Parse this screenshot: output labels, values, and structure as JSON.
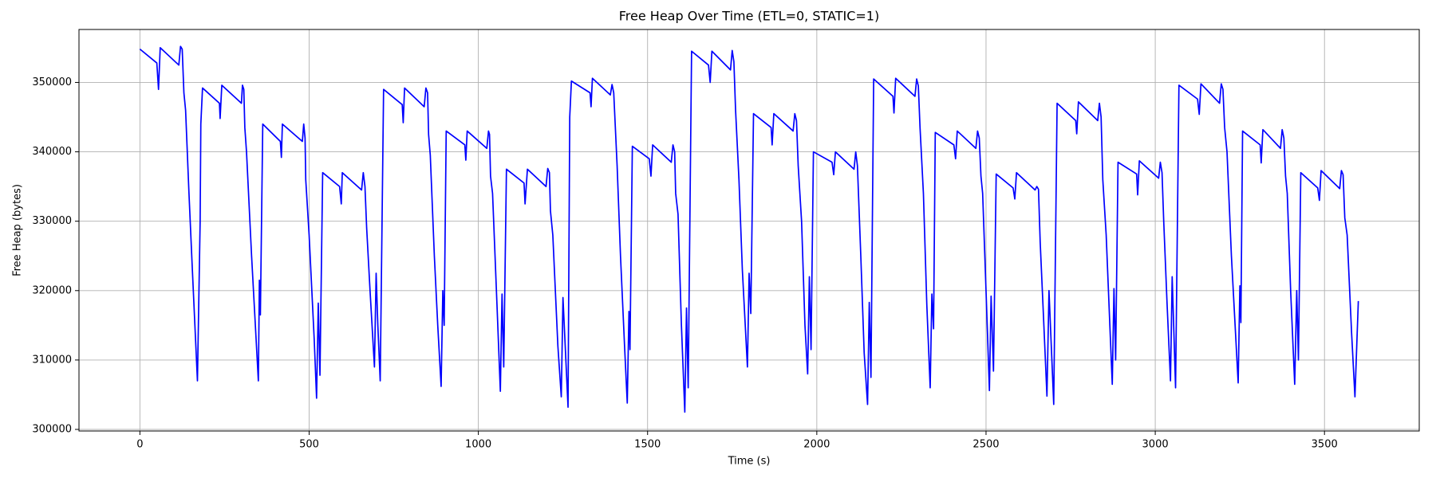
{
  "chart_data": {
    "type": "line",
    "title": "Free Heap Over Time (ETL=0, STATIC=1)",
    "x_label": "Time (s)",
    "y_label": "Free Heap (bytes)",
    "color": "#0000ff",
    "grid": true,
    "xlim": [
      -180,
      3780
    ],
    "ylim": [
      299770,
      357630
    ],
    "xticks": [
      0,
      500,
      1000,
      1500,
      2000,
      2500,
      3000,
      3500
    ],
    "yticks": [
      300000,
      310000,
      320000,
      330000,
      340000,
      350000
    ],
    "x": [
      0,
      50,
      55,
      60,
      115,
      120,
      125,
      130,
      135,
      145,
      155,
      170,
      178,
      180,
      185,
      235,
      237,
      242,
      300,
      303,
      307,
      310,
      315,
      330,
      340,
      350,
      353,
      356,
      363,
      415,
      418,
      421,
      480,
      484,
      488,
      490,
      500,
      515,
      522,
      527,
      532,
      540,
      590,
      595,
      598,
      655,
      660,
      665,
      670,
      680,
      693,
      698,
      703,
      710,
      720,
      775,
      778,
      782,
      840,
      845,
      850,
      853,
      858,
      870,
      880,
      890,
      895,
      899,
      905,
      960,
      963,
      967,
      1025,
      1030,
      1033,
      1036,
      1042,
      1055,
      1065,
      1070,
      1075,
      1083,
      1135,
      1138,
      1145,
      1200,
      1205,
      1210,
      1213,
      1220,
      1235,
      1245,
      1250,
      1265,
      1270,
      1275,
      1330,
      1333,
      1337,
      1390,
      1395,
      1400,
      1410,
      1420,
      1432,
      1440,
      1445,
      1448,
      1455,
      1505,
      1510,
      1515,
      1570,
      1575,
      1580,
      1583,
      1590,
      1600,
      1610,
      1615,
      1620,
      1630,
      1680,
      1685,
      1690,
      1745,
      1750,
      1755,
      1760,
      1770,
      1780,
      1795,
      1800,
      1805,
      1813,
      1865,
      1868,
      1873,
      1930,
      1935,
      1940,
      1945,
      1955,
      1965,
      1973,
      1978,
      1983,
      1990,
      2045,
      2050,
      2055,
      2110,
      2115,
      2120,
      2130,
      2140,
      2150,
      2155,
      2160,
      2168,
      2225,
      2228,
      2233,
      2290,
      2295,
      2300,
      2305,
      2315,
      2325,
      2335,
      2340,
      2345,
      2350,
      2405,
      2410,
      2415,
      2470,
      2475,
      2480,
      2485,
      2490,
      2500,
      2510,
      2515,
      2522,
      2530,
      2580,
      2585,
      2590,
      2645,
      2650,
      2655,
      2660,
      2670,
      2680,
      2686,
      2700,
      2710,
      2765,
      2768,
      2773,
      2830,
      2835,
      2840,
      2845,
      2855,
      2865,
      2873,
      2878,
      2883,
      2890,
      2945,
      2948,
      2953,
      3010,
      3015,
      3020,
      3025,
      3035,
      3045,
      3050,
      3060,
      3070,
      3125,
      3130,
      3135,
      3190,
      3195,
      3200,
      3205,
      3212,
      3225,
      3245,
      3250,
      3253,
      3258,
      3310,
      3313,
      3318,
      3370,
      3375,
      3380,
      3385,
      3390,
      3400,
      3412,
      3418,
      3423,
      3430,
      3480,
      3485,
      3490,
      3545,
      3550,
      3555,
      3560,
      3567,
      3580,
      3590,
      3600
    ],
    "values": [
      354800,
      352800,
      349000,
      355000,
      352500,
      355200,
      354800,
      348500,
      346000,
      334000,
      323000,
      307000,
      330000,
      344000,
      349200,
      347000,
      344800,
      349600,
      347000,
      349600,
      349000,
      343500,
      340000,
      325000,
      316000,
      307000,
      321500,
      316500,
      344000,
      341500,
      339200,
      344000,
      341500,
      344000,
      342000,
      336000,
      328000,
      313000,
      304500,
      318200,
      307800,
      337000,
      335000,
      332500,
      337000,
      334500,
      337000,
      335000,
      329000,
      320000,
      309000,
      322500,
      315000,
      307000,
      349000,
      346800,
      344200,
      349200,
      346500,
      349200,
      348500,
      342500,
      339500,
      325000,
      315000,
      306200,
      320000,
      315000,
      343000,
      341000,
      338800,
      343000,
      340500,
      343000,
      342500,
      336500,
      334000,
      318000,
      305500,
      319500,
      309000,
      337500,
      335500,
      332500,
      337500,
      335000,
      337600,
      337000,
      331500,
      328000,
      312000,
      304700,
      319000,
      303200,
      345000,
      350200,
      348500,
      346500,
      350600,
      348200,
      349700,
      348500,
      338000,
      325000,
      312000,
      303800,
      317000,
      311500,
      340800,
      339000,
      336500,
      341000,
      338500,
      341000,
      340000,
      334000,
      331000,
      315000,
      302500,
      317500,
      306000,
      354500,
      352500,
      350000,
      354500,
      351800,
      354600,
      353000,
      346000,
      336000,
      323000,
      309000,
      322500,
      316700,
      345500,
      343500,
      341000,
      345500,
      343000,
      345500,
      344500,
      338000,
      330000,
      315000,
      308000,
      322000,
      311500,
      340000,
      338500,
      336700,
      340000,
      337500,
      340000,
      338000,
      325000,
      311000,
      303600,
      318300,
      307500,
      350500,
      348000,
      345600,
      350600,
      348000,
      350500,
      349500,
      343500,
      334000,
      318000,
      306000,
      319500,
      314500,
      342800,
      341000,
      339000,
      343000,
      340500,
      343000,
      342000,
      336500,
      334000,
      320000,
      305600,
      319200,
      308400,
      336800,
      334800,
      333200,
      337000,
      334500,
      335000,
      334600,
      327000,
      316000,
      304800,
      320000,
      303600,
      347000,
      344500,
      342600,
      347200,
      344500,
      347000,
      345000,
      336000,
      328000,
      316000,
      306500,
      320300,
      310000,
      338500,
      336800,
      333800,
      338700,
      336200,
      338500,
      337000,
      330000,
      318000,
      307000,
      322000,
      306000,
      349600,
      347600,
      345400,
      349800,
      347000,
      349800,
      349000,
      343500,
      340000,
      325000,
      306700,
      320700,
      315400,
      343000,
      341000,
      338400,
      343200,
      340500,
      343200,
      342000,
      336500,
      334000,
      320000,
      306500,
      320000,
      310000,
      337000,
      334800,
      333000,
      337300,
      334700,
      337300,
      336700,
      330500,
      328000,
      314000,
      304700,
      318500
    ]
  }
}
